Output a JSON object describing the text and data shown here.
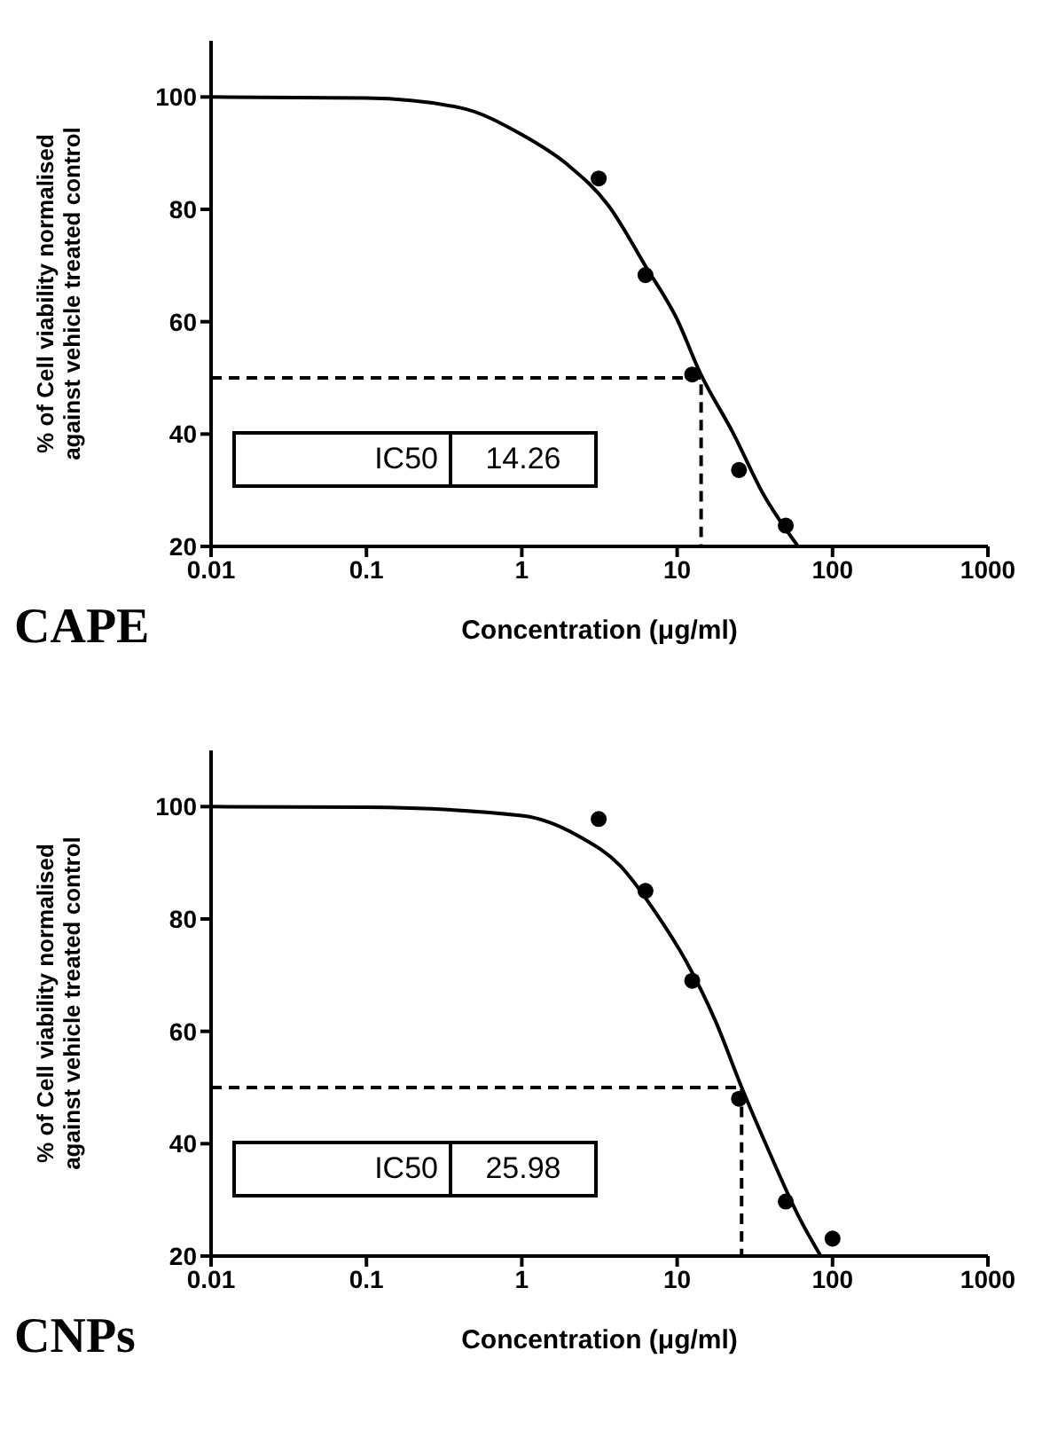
{
  "chart_data": [
    {
      "type": "scatter",
      "title": "CAPE",
      "xlabel": "Concentration (μg/ml)",
      "ylabel": "% of Cell viability normalised against vehicle treated control",
      "xlim": [
        0.01,
        1000
      ],
      "xticks": [
        0.01,
        0.1,
        1,
        10,
        100,
        1000
      ],
      "ylim": [
        20,
        110
      ],
      "yticks": [
        20,
        40,
        60,
        80,
        100
      ],
      "log": "x",
      "annotations": [
        "IC50",
        "14.26"
      ],
      "series": [
        {
          "type": "scatter",
          "color": "#000000",
          "marker": "circle",
          "x": [
            3.125,
            6.25,
            12.5,
            25,
            50
          ],
          "values": [
            85.5,
            68.3,
            50.6,
            33.6,
            23.7
          ]
        },
        {
          "type": "line",
          "color": "#000000",
          "marker": "none",
          "x": [
            0.01,
            0.1,
            0.4,
            1,
            1.96,
            3.63,
            6.25,
            10,
            14.1,
            22.9,
            35.5,
            60
          ],
          "values": [
            100,
            99.8,
            98.1,
            93.3,
            88,
            80.6,
            69.9,
            60.4,
            50.8,
            40.2,
            29.5,
            20
          ]
        },
        {
          "type": "line",
          "color": "#000000",
          "marker": "none",
          "line_style": "dashed",
          "x": [
            0.01,
            14.26,
            14.26
          ],
          "values": [
            50,
            50,
            20
          ]
        }
      ]
    },
    {
      "type": "scatter",
      "title": "CNPs",
      "xlabel": "Concentration (μg/ml)",
      "ylabel": "% of Cell viability normalised against vehicle treated control",
      "xlim": [
        0.01,
        1000
      ],
      "xticks": [
        0.01,
        0.1,
        1,
        10,
        100,
        1000
      ],
      "ylim": [
        20,
        110
      ],
      "yticks": [
        20,
        40,
        60,
        80,
        100
      ],
      "log": "x",
      "annotations": [
        "IC50",
        "25.98"
      ],
      "series": [
        {
          "type": "scatter",
          "color": "#000000",
          "marker": "circle",
          "x": [
            3.125,
            6.25,
            12.5,
            25,
            50,
            100
          ],
          "values": [
            97.8,
            85,
            69,
            48,
            29.7,
            23.1
          ]
        },
        {
          "type": "line",
          "color": "#000000",
          "marker": "none",
          "x": [
            0.01,
            0.1,
            1,
            2.34,
            4.32,
            7.32,
            11.4,
            17.6,
            26.2,
            38.9,
            60.4,
            84
          ],
          "values": [
            100,
            99.9,
            98.4,
            94.7,
            89.4,
            81,
            72.5,
            61.9,
            49.8,
            38.7,
            27.1,
            20
          ]
        },
        {
          "type": "line",
          "color": "#000000",
          "marker": "none",
          "line_style": "dashed",
          "x": [
            0.01,
            25.98,
            25.98
          ],
          "values": [
            50,
            50,
            20
          ]
        }
      ]
    }
  ]
}
